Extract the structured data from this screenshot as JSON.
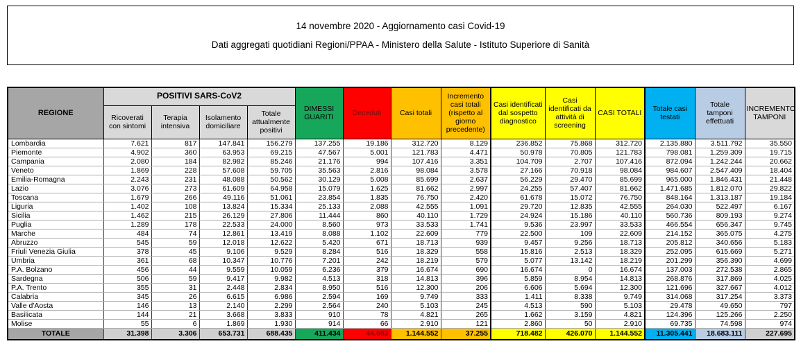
{
  "title_box": {
    "line1": "14 novembre 2020 - Aggiornamento casi Covid-19",
    "line2": "Dati aggregati quotidiani Regioni/PPAA - Ministero della Salute - Istituto Superiore di Sanità"
  },
  "colors": {
    "header_gray": "#a6a6a6",
    "subheader_gray": "#d9d9d9",
    "green": "#17a75b",
    "red": "#fe0000",
    "dark_red_text": "#7e0d0d",
    "orange": "#ffc000",
    "yellow": "#ffff00",
    "blue": "#00b0f0",
    "periwinkle": "#b8cce4",
    "total_gray": "#d0d0d0"
  },
  "table": {
    "group_header": "POSITIVI SARS-CoV2",
    "columns": [
      {
        "label": "REGIONE"
      },
      {
        "label": "Ricoverati con sintomi"
      },
      {
        "label": "Terapia intensiva"
      },
      {
        "label": "Isolamento domiciliare"
      },
      {
        "label": "Totale attualmente positivi"
      },
      {
        "label": "DIMESSI GUARITI"
      },
      {
        "label": "Deceduti"
      },
      {
        "label": "Casi totali"
      },
      {
        "label": "Incremento casi totali (rispetto al giorno precedente)"
      },
      {
        "label": "Casi identificati dal sospetto diagnostico"
      },
      {
        "label": "Casi identificati da attività di screening"
      },
      {
        "label": "CASI TOTALI"
      },
      {
        "label": "Totale casi testati"
      },
      {
        "label": "Totale tamponi effettuati"
      },
      {
        "label": "INCREMENTO TAMPONI"
      }
    ],
    "rows": [
      {
        "region": "Lombardia",
        "values": [
          "7.621",
          "817",
          "147.841",
          "156.279",
          "137.255",
          "19.186",
          "312.720",
          "8.129",
          "236.852",
          "75.868",
          "312.720",
          "2.135.880",
          "3.511.792",
          "35.550"
        ]
      },
      {
        "region": "Piemonte",
        "values": [
          "4.902",
          "360",
          "63.953",
          "69.215",
          "47.567",
          "5.001",
          "121.783",
          "4.471",
          "50.978",
          "70.805",
          "121.783",
          "798.081",
          "1.259.309",
          "19.715"
        ]
      },
      {
        "region": "Campania",
        "values": [
          "2.080",
          "184",
          "82.982",
          "85.246",
          "21.176",
          "994",
          "107.416",
          "3.351",
          "104.709",
          "2.707",
          "107.416",
          "872.094",
          "1.242.244",
          "20.662"
        ]
      },
      {
        "region": "Veneto",
        "values": [
          "1.869",
          "228",
          "57.608",
          "59.705",
          "35.563",
          "2.816",
          "98.084",
          "3.578",
          "27.166",
          "70.918",
          "98.084",
          "984.607",
          "2.547.409",
          "18.404"
        ]
      },
      {
        "region": "Emilia-Romagna",
        "values": [
          "2.243",
          "231",
          "48.088",
          "50.562",
          "30.129",
          "5.008",
          "85.699",
          "2.637",
          "56.229",
          "29.470",
          "85.699",
          "965.000",
          "1.846.431",
          "21.448"
        ]
      },
      {
        "region": "Lazio",
        "values": [
          "3.076",
          "273",
          "61.609",
          "64.958",
          "15.079",
          "1.625",
          "81.662",
          "2.997",
          "24.255",
          "57.407",
          "81.662",
          "1.471.685",
          "1.812.070",
          "29.822"
        ]
      },
      {
        "region": "Toscana",
        "values": [
          "1.679",
          "266",
          "49.116",
          "51.061",
          "23.854",
          "1.835",
          "76.750",
          "2.420",
          "61.678",
          "15.072",
          "76.750",
          "848.164",
          "1.313.187",
          "19.184"
        ]
      },
      {
        "region": "Liguria",
        "values": [
          "1.402",
          "108",
          "13.824",
          "15.334",
          "25.133",
          "2.088",
          "42.555",
          "1.091",
          "29.720",
          "12.835",
          "42.555",
          "264.030",
          "522.497",
          "6.167"
        ]
      },
      {
        "region": "Sicilia",
        "values": [
          "1.462",
          "215",
          "26.129",
          "27.806",
          "11.444",
          "860",
          "40.110",
          "1.729",
          "24.924",
          "15.186",
          "40.110",
          "560.736",
          "809.193",
          "9.274"
        ]
      },
      {
        "region": "Puglia",
        "values": [
          "1.289",
          "178",
          "22.533",
          "24.000",
          "8.560",
          "973",
          "33.533",
          "1.741",
          "9.536",
          "23.997",
          "33.533",
          "466.554",
          "656.347",
          "9.745"
        ]
      },
      {
        "region": "Marche",
        "values": [
          "484",
          "74",
          "12.861",
          "13.419",
          "8.088",
          "1.102",
          "22.609",
          "779",
          "22.500",
          "109",
          "22.609",
          "214.152",
          "365.075",
          "4.275"
        ]
      },
      {
        "region": "Abruzzo",
        "values": [
          "545",
          "59",
          "12.018",
          "12.622",
          "5.420",
          "671",
          "18.713",
          "939",
          "9.457",
          "9.256",
          "18.713",
          "205.812",
          "340.656",
          "5.183"
        ]
      },
      {
        "region": "Friuli Venezia Giulia",
        "values": [
          "378",
          "45",
          "9.106",
          "9.529",
          "8.284",
          "516",
          "18.329",
          "558",
          "15.816",
          "2.513",
          "18.329",
          "252.095",
          "615.669",
          "5.271"
        ]
      },
      {
        "region": "Umbria",
        "values": [
          "361",
          "68",
          "10.347",
          "10.776",
          "7.201",
          "242",
          "18.219",
          "579",
          "5.077",
          "13.142",
          "18.219",
          "201.299",
          "356.390",
          "4.699"
        ]
      },
      {
        "region": "P.A. Bolzano",
        "values": [
          "456",
          "44",
          "9.559",
          "10.059",
          "6.236",
          "379",
          "16.674",
          "690",
          "16.674",
          "0",
          "16.674",
          "137.003",
          "272.538",
          "2.865"
        ]
      },
      {
        "region": "Sardegna",
        "values": [
          "506",
          "59",
          "9.417",
          "9.982",
          "4.513",
          "318",
          "14.813",
          "396",
          "5.859",
          "8.954",
          "14.813",
          "268.876",
          "317.869",
          "4.025"
        ]
      },
      {
        "region": "P.A. Trento",
        "values": [
          "355",
          "31",
          "2.448",
          "2.834",
          "8.950",
          "516",
          "12.300",
          "206",
          "6.606",
          "5.694",
          "12.300",
          "121.696",
          "327.667",
          "4.012"
        ]
      },
      {
        "region": "Calabria",
        "values": [
          "345",
          "26",
          "6.615",
          "6.986",
          "2.594",
          "169",
          "9.749",
          "333",
          "1.411",
          "8.338",
          "9.749",
          "314.068",
          "317.254",
          "3.373"
        ]
      },
      {
        "region": "Valle d'Aosta",
        "values": [
          "146",
          "13",
          "2.140",
          "2.299",
          "2.564",
          "240",
          "5.103",
          "245",
          "4.513",
          "590",
          "5.103",
          "29.478",
          "49.650",
          "797"
        ]
      },
      {
        "region": "Basilicata",
        "values": [
          "144",
          "21",
          "3.668",
          "3.833",
          "910",
          "78",
          "4.821",
          "265",
          "1.662",
          "3.159",
          "4.821",
          "124.396",
          "125.266",
          "2.250"
        ]
      },
      {
        "region": "Molise",
        "values": [
          "55",
          "6",
          "1.869",
          "1.930",
          "914",
          "66",
          "2.910",
          "121",
          "2.860",
          "50",
          "2.910",
          "69.735",
          "74.598",
          "974"
        ]
      }
    ],
    "total_row": {
      "label": "TOTALE",
      "values": [
        "31.398",
        "3.306",
        "653.731",
        "688.435",
        "411.434",
        "44.683",
        "1.144.552",
        "37.255",
        "718.482",
        "426.070",
        "1.144.552",
        "11.305.441",
        "18.683.111",
        "227.695"
      ]
    }
  }
}
